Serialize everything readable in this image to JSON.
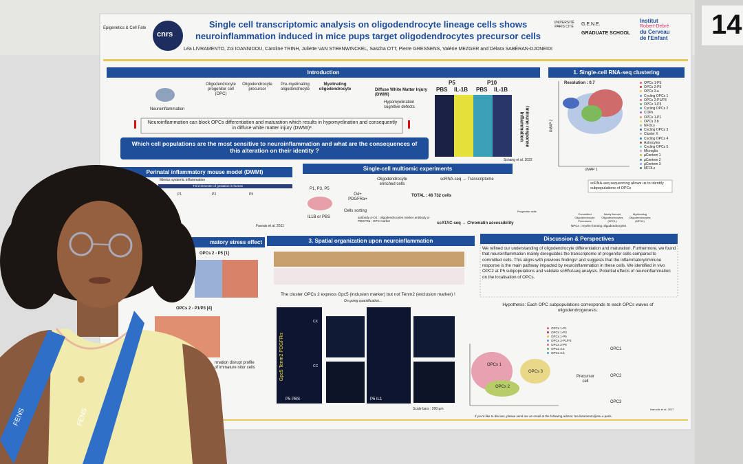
{
  "board_number": "14",
  "header": {
    "title_line1": "Single cell transcriptomic analysis on oligodendrocyte lineage cells shows",
    "title_line2": "neuroinflammation induced in mice pups target oligodendrocytes precursor cells",
    "authors": "Léa LIVRAMENTO, Zoi IOANNIDOU, Caroline TRINH, Juliette VAN STEENWINCKEL, Sascha OTT, Pierre GRESSENS, Valérie MEZGER and Délara SABÉRAN-DJONEIDI",
    "logo_lab": "Epigenetics & Cell Fate",
    "logo_cnrs": "cnrs",
    "logo_univ": "UNIVERSITÉ PARIS CITÉ",
    "logo_gene": "G.E.N.E.",
    "logo_graduate": "GRADUATE SCHOOL",
    "logo_institut": [
      "Institut",
      "Robert-Debré",
      "du Cerveau",
      "de l'Enfant"
    ]
  },
  "introduction": {
    "heading": "Introduction",
    "stages": [
      "Oligodendrocyte progenitor cell (OPC)",
      "Oligodendrocyte precursor",
      "Pre-myelinating oligodendrocyte",
      "Myelinating oligodendrocyte"
    ],
    "neuroinflammation": "Neuroinflammation",
    "dwmi": "Diffuse White Matter Injury (DWMI)",
    "dwmi_effects": "Hypomyelination cognitive defects",
    "statement": "Neuroinflammation can block OPCs differentiation and maturation which results in hypomyelination and consequently in diffuse white matter injury (DWMI)³.",
    "question": "Which cell populations are the most sensitive to neuroinflammation and what are the consequences of this alteration on their identity ?",
    "heatmap_ages": [
      "P5",
      "P10"
    ],
    "heatmap_conditions": [
      "PBS",
      "IL-1B",
      "PBS",
      "IL-1B"
    ],
    "heatmap_side": "Immune response Inflammation",
    "citation": "Schang et al. 2022"
  },
  "clustering": {
    "heading": "1. Single-cell RNA-seq clustering",
    "resolution": "Resolution : 0.7",
    "axis_x": "UMAP 1",
    "axis_y": "UMAP 2",
    "clusters": [
      "OPCs 1-P5",
      "OPCs 2-P5",
      "OPCs 3.a",
      "Cycling OPCs 1",
      "OPCs 2-P1/P3",
      "OPCs 1-P3",
      "Cycling OPCs 2",
      "COPs",
      "OPCs 1-P1",
      "OPCs 3.b",
      "NFOLs",
      "Cycling OPCs 3",
      "Cluster X",
      "Cycling OPCs 4",
      "Astrocytes",
      "Cycling OPCs 5",
      "Microglia",
      "µCentem 1",
      "µCentem 2",
      "µCentem 3",
      "MFOLs"
    ],
    "note": "scRNA-seq sequencing allows us to identify subpopulations of OPCs",
    "lineage": [
      "Progenitor cells",
      "Committed Oligodendrocyte Precursors",
      "Newly formed Oligodendrocytes (NFOL)",
      "Myelinating Oligodendrocytes (MFOL)"
    ],
    "footnote": "NPCs : myelin-forming oligodendrocytes"
  },
  "model": {
    "heading": "Perinatal inflammatory mouse model (DWMI)",
    "subtitle": "Mimics systemic inflammation",
    "timeline": "Third trimester of gestation in human",
    "days": [
      "P1",
      "P3",
      "P5"
    ],
    "citation": "Favrais et al. 2011"
  },
  "multiomic": {
    "heading": "Single-cell multiomic experiments",
    "ages": "P1, P3, P5",
    "treatment": "IL1B or PBS",
    "markers": "O4+ PDGFRa+",
    "sorting": "Cells sorting",
    "enriched": "Oligodendrocyte enriched cells",
    "total": "TOTAL : 46 732 cells",
    "rna": "scRNA-seq → Transcriptome",
    "atac": "scATAC-seq → Chromatin accessibility",
    "antibodies": "antibody α-O4 : oligodendrocytes marker antibody α-PDGFRα : OPC marker"
  },
  "stress": {
    "heading": "matory stress effect",
    "panel1": "OPCs 2 - P5 [1]",
    "panel2": "OPCs 2 - P1/P3 [4]",
    "caption": "rmation disrupt profile of immature nitor cells"
  },
  "spatial": {
    "heading": "3. Spatial organization upon neuroinflammation",
    "statement": "The cluster OPCs 2 express Gpc5 (inclusion marker) but not Tenm2 (exclusion marker) !",
    "ongoing": "On going quantification...",
    "stain": "Gpc5 Tenm2 PDGFRα",
    "samples": [
      "P5 PBS",
      "P5 IL1"
    ],
    "regions": [
      "CX",
      "CC"
    ],
    "scale": "Scale bars : 200 µm"
  },
  "discussion": {
    "heading": "Discussion & Perspectives",
    "paragraph": "We refined our understanding of oligodendrocyte differentiation and maturation. Furthermore, we found that neuroinflammation mainly deregulates the transcriptome of progenitor cells compared to committed cells. This aligns with previous findings³ and suggests that the inflammatory/immune response is the main pathway impacted by neuroinflammation in these cells. We identified in vivo OPC2 at P5 subpopulations and validate snRNAseq analysis. Potential effects of neuroinflammation on the localisation of OPCs.",
    "hypothesis": "Hypothesis: Each OPC subpopulations corresponds to each OPCs waves of oligodendrogenesis.",
    "umap_legend": [
      "OPCs 1-P1",
      "OPCs 1-P3",
      "OPCs 1-P5",
      "OPCs 2-P1/P3",
      "OPCs 2-P5",
      "OPCs 3.a",
      "OPCs 3.b"
    ],
    "umap_labels": [
      "OPCs 1",
      "OPCs 2",
      "OPCs 3"
    ],
    "precursor": "Precursor cell",
    "opcs": [
      "OPC1",
      "OPC2",
      "OPC3"
    ],
    "citation": "Naruolis et al. 2017",
    "contact": "If you'd like to discuss, please send me an email at the following adress: lea.livramento@etu.u-paris."
  },
  "lanyard": "FENS"
}
